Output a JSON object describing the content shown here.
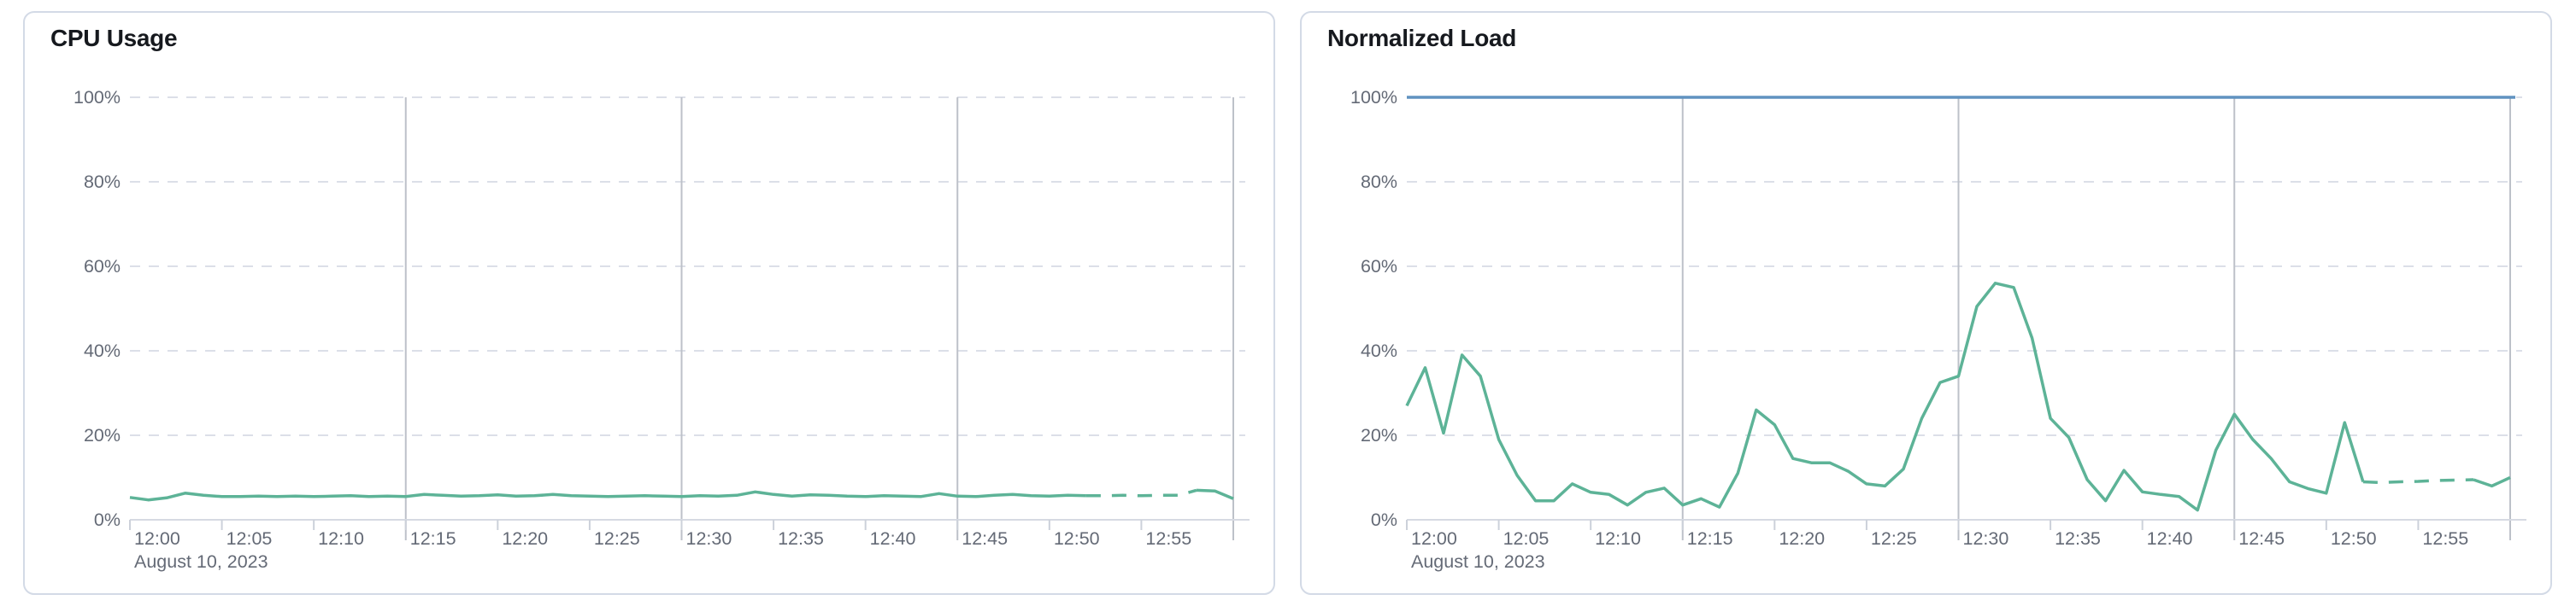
{
  "page_background": "#ffffff",
  "date_context_label": "August 10, 2023",
  "chart_data": [
    {
      "type": "line",
      "title": "CPU Usage",
      "xlabel": "",
      "ylabel": "",
      "x_axis": {
        "tick_labels": [
          "12:00",
          "12:05",
          "12:10",
          "12:15",
          "12:20",
          "12:25",
          "12:30",
          "12:35",
          "12:40",
          "12:45",
          "12:50",
          "12:55"
        ],
        "context_label": "August 10, 2023",
        "domain_minutes": [
          0,
          60
        ],
        "major_gridline_minutes": [
          15,
          30,
          45,
          60
        ]
      },
      "y_axis": {
        "tick_labels": [
          "100%",
          "80%",
          "60%",
          "40%",
          "20%",
          "0%"
        ],
        "ylim": [
          0,
          100
        ],
        "grid": "dashed-horizontal"
      },
      "legend": "none",
      "series": [
        {
          "name": "cpu-usage-percent",
          "color": "#5db397",
          "unit": "%",
          "start_time": "12:00",
          "step_minutes": 1,
          "dashed_from_index": 52,
          "dashed_to_index": 58,
          "values": [
            5.3,
            4.7,
            5.2,
            6.3,
            5.8,
            5.5,
            5.5,
            5.6,
            5.5,
            5.6,
            5.5,
            5.6,
            5.7,
            5.5,
            5.6,
            5.5,
            6.0,
            5.8,
            5.6,
            5.7,
            5.9,
            5.6,
            5.7,
            6.0,
            5.7,
            5.6,
            5.5,
            5.6,
            5.7,
            5.6,
            5.5,
            5.7,
            5.6,
            5.8,
            6.6,
            6.0,
            5.6,
            5.9,
            5.8,
            5.6,
            5.5,
            5.7,
            5.6,
            5.5,
            6.2,
            5.6,
            5.5,
            5.8,
            6.0,
            5.7,
            5.6,
            5.8,
            5.7,
            5.7,
            5.8,
            5.7,
            5.8,
            5.8,
            7.0,
            6.8,
            5.0
          ]
        }
      ]
    },
    {
      "type": "line",
      "title": "Normalized Load",
      "xlabel": "",
      "ylabel": "",
      "x_axis": {
        "tick_labels": [
          "12:00",
          "12:05",
          "12:10",
          "12:15",
          "12:20",
          "12:25",
          "12:30",
          "12:35",
          "12:40",
          "12:45",
          "12:50",
          "12:55"
        ],
        "context_label": "August 10, 2023",
        "domain_minutes": [
          0,
          60
        ],
        "major_gridline_minutes": [
          15,
          30,
          45,
          60
        ]
      },
      "y_axis": {
        "tick_labels": [
          "100%",
          "80%",
          "60%",
          "40%",
          "20%",
          "0%"
        ],
        "ylim": [
          0,
          100
        ],
        "grid": "dashed-horizontal"
      },
      "legend": "none",
      "series": [
        {
          "name": "load-limit-100pct",
          "color": "#6092c0",
          "unit": "%",
          "flat_value": 100
        },
        {
          "name": "normalized-load-percent",
          "color": "#5db397",
          "unit": "%",
          "start_time": "12:00",
          "step_minutes": 1,
          "dashed_from_index": 52,
          "dashed_to_index": 58,
          "values": [
            27,
            36,
            20.5,
            39,
            34,
            19,
            10.5,
            4.5,
            4.5,
            8.5,
            6.5,
            6,
            3.5,
            6.5,
            7.5,
            3.5,
            5,
            3,
            11,
            26,
            22.5,
            14.5,
            13.5,
            13.5,
            11.5,
            8.5,
            8,
            12,
            24,
            32.5,
            34,
            50.5,
            56,
            55,
            43,
            24,
            19.5,
            9.5,
            4.5,
            11.7,
            6.6,
            6,
            5.5,
            2.3,
            16.5,
            25,
            19,
            14.5,
            9,
            7.4,
            6.3,
            23,
            9,
            8.8,
            9,
            9.1,
            9.3,
            9.4,
            9.5,
            8,
            10
          ]
        }
      ]
    }
  ],
  "colors": {
    "grid_dashed": "#dcdfe8",
    "grid_major": "#bdc1c9",
    "axis_line": "#d6dae2",
    "tick_mark": "#ccd1da",
    "axis_text": "#646a76",
    "title_text": "#16191e",
    "card_border": "#d3dae6",
    "card_background": "#ffffff",
    "series_green": "#5db397",
    "series_blue": "#6092c0"
  }
}
